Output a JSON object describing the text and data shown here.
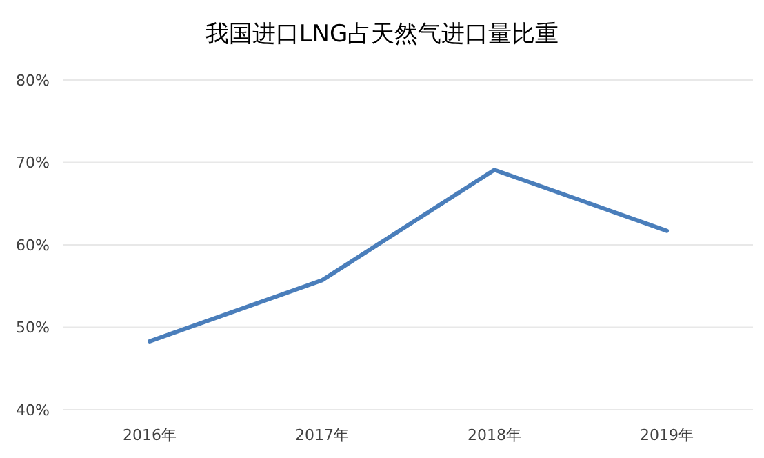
{
  "chart_data": {
    "type": "line",
    "title": "我国进口LNG占天然气进口量比重",
    "categories": [
      "2016年",
      "2017年",
      "2018年",
      "2019年"
    ],
    "series": [
      {
        "color": "#4a7ebb",
        "values": [
          48.3,
          55.7,
          69.1,
          61.7
        ]
      }
    ],
    "ylim": [
      40,
      80
    ],
    "yticks": [
      {
        "value": 40,
        "label": "40%"
      },
      {
        "value": 50,
        "label": "50%"
      },
      {
        "value": 60,
        "label": "60%"
      },
      {
        "value": 70,
        "label": "70%"
      },
      {
        "value": 80,
        "label": "80%"
      }
    ],
    "grid": "y",
    "marker": "none",
    "line_style": "solid"
  }
}
